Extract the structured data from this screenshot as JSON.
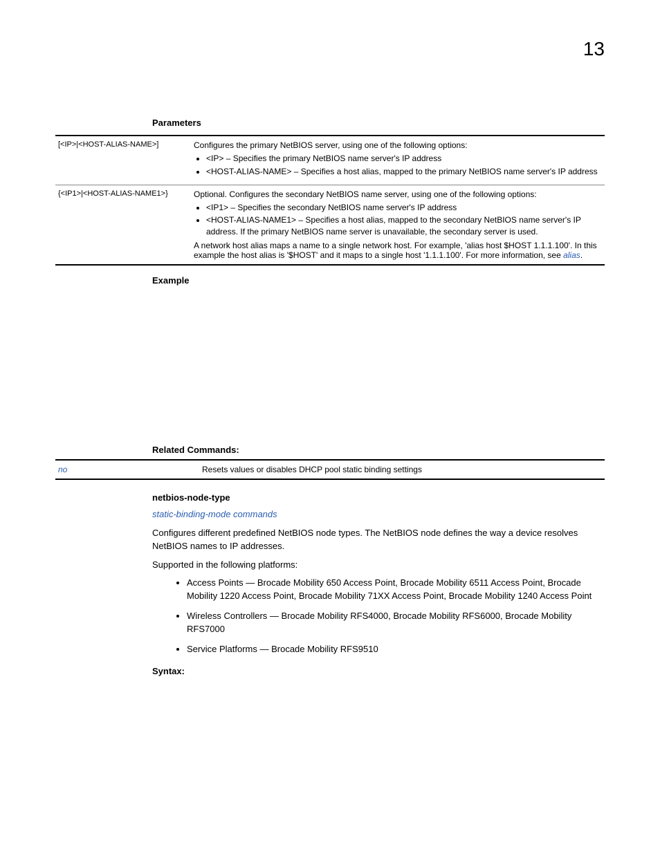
{
  "page": {
    "number": "13"
  },
  "headings": {
    "parameters": "Parameters",
    "example": "Example",
    "related": "Related Commands:",
    "netbios": "netbios-node-type",
    "syntax": "Syntax:"
  },
  "params_table": {
    "row1": {
      "param": "[<IP>|<HOST-ALIAS-NAME>]",
      "intro": "Configures the primary NetBIOS server, using one of the following options:",
      "b1": "<IP> – Specifies the primary NetBIOS name server's IP address",
      "b2": "<HOST-ALIAS-NAME> – Specifies a host alias, mapped to the primary NetBIOS name server's IP address"
    },
    "row2": {
      "param": "{<IP1>|<HOST-ALIAS-NAME1>}",
      "intro": "Optional. Configures the secondary NetBIOS name server, using one of the following options:",
      "b1": "<IP1> – Specifies the secondary NetBIOS name server's IP address",
      "b2": "<HOST-ALIAS-NAME1> – Specifies a host alias, mapped to the secondary NetBIOS name server's IP address. If the primary NetBIOS name server is unavailable, the secondary server is used.",
      "note1": "A network host alias maps a name to a single network host. For example, 'alias host $HOST 1.1.1.100'. In this example the host alias is '$HOST' and it maps to a single host '1.1.1.100'. For more information, see ",
      "note_link": "alias",
      "note_end": "."
    }
  },
  "related_table": {
    "cmd": "no",
    "desc": "Resets values or disables DHCP pool static binding settings"
  },
  "netbios": {
    "link": "static-binding-mode commands",
    "p1": "Configures different predefined NetBIOS node types. The NetBIOS node defines the way a device resolves NetBIOS names to IP addresses.",
    "p2": "Supported in the following platforms:",
    "li1": "Access Points — Brocade Mobility 650 Access Point, Brocade Mobility 6511 Access Point, Brocade Mobility 1220 Access Point, Brocade Mobility 71XX Access Point, Brocade Mobility 1240 Access Point",
    "li2": "Wireless Controllers — Brocade Mobility RFS4000, Brocade Mobility RFS6000, Brocade Mobility RFS7000",
    "li3": "Service Platforms — Brocade Mobility RFS9510"
  }
}
